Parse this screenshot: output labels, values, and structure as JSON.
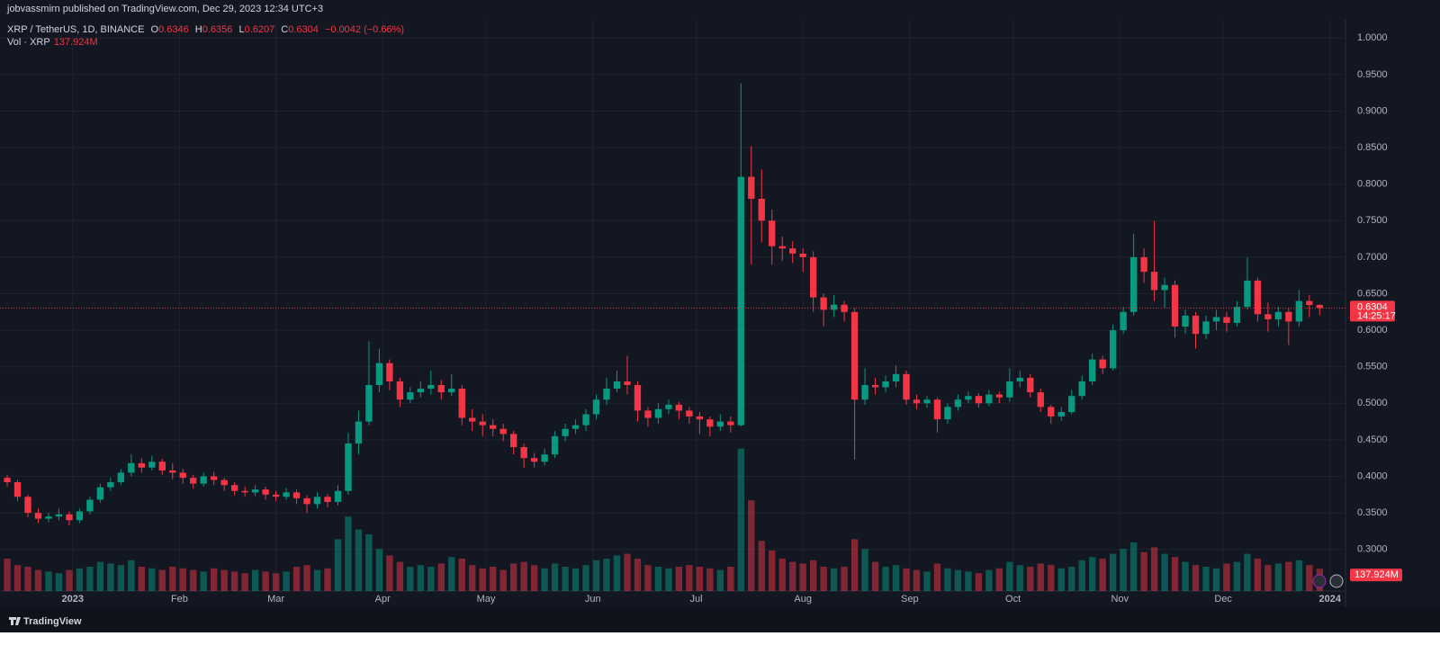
{
  "header": "jobvassmirn published on TradingView.com, Dec 29, 2023 12:34 UTC+3",
  "legend": {
    "symbol": "XRP / TetherUS, 1D, BINANCE",
    "o_key": "O",
    "open": "0.6346",
    "h_key": "H",
    "high": "0.6356",
    "l_key": "L",
    "low": "0.6207",
    "c_key": "C",
    "close": "0.6304",
    "change": "−0.0042 (−0.66%)",
    "volume_name": "Vol · XRP",
    "volume": "137.924M"
  },
  "price_tag": {
    "price": "0.6304",
    "countdown": "14:25:17"
  },
  "volume_tag": "137.924M",
  "footer": "TradingView",
  "chart_data": {
    "type": "candlestick",
    "up_color": "#089981",
    "down_color": "#f23645",
    "grid": true,
    "xlim": [
      -0.7,
      129.5
    ],
    "ylim": [
      0.243,
      1.025
    ],
    "vlim": [
      0,
      1000
    ],
    "xticks": [
      {
        "value": 6.33,
        "label": "2023"
      },
      {
        "value": 16.67,
        "label": "Feb"
      },
      {
        "value": 26,
        "label": "Mar"
      },
      {
        "value": 36.33,
        "label": "Apr"
      },
      {
        "value": 46.33,
        "label": "May"
      },
      {
        "value": 56.67,
        "label": "Jun"
      },
      {
        "value": 66.67,
        "label": "Jul"
      },
      {
        "value": 77,
        "label": "Aug"
      },
      {
        "value": 87.33,
        "label": "Sep"
      },
      {
        "value": 97.33,
        "label": "Oct"
      },
      {
        "value": 107.67,
        "label": "Nov"
      },
      {
        "value": 117.67,
        "label": "Dec"
      },
      {
        "value": 128,
        "label": "2024"
      }
    ],
    "yticks": [
      {
        "value": 0.3,
        "label": "0.3000"
      },
      {
        "value": 0.35,
        "label": "0.3500"
      },
      {
        "value": 0.4,
        "label": "0.4000"
      },
      {
        "value": 0.45,
        "label": "0.4500"
      },
      {
        "value": 0.5,
        "label": "0.5000"
      },
      {
        "value": 0.55,
        "label": "0.5500"
      },
      {
        "value": 0.6,
        "label": "0.6000"
      },
      {
        "value": 0.65,
        "label": "0.6500"
      },
      {
        "value": 0.7,
        "label": "0.7000"
      },
      {
        "value": 0.75,
        "label": "0.7500"
      },
      {
        "value": 0.8,
        "label": "0.8000"
      },
      {
        "value": 0.85,
        "label": "0.8500"
      },
      {
        "value": 0.9,
        "label": "0.9000"
      },
      {
        "value": 0.95,
        "label": "0.9500"
      },
      {
        "value": 1.0,
        "label": "1.0000"
      }
    ],
    "candles": [
      [
        0.398,
        0.402,
        0.386,
        0.392
      ],
      [
        0.392,
        0.395,
        0.366,
        0.372
      ],
      [
        0.372,
        0.375,
        0.344,
        0.35
      ],
      [
        0.35,
        0.356,
        0.336,
        0.342
      ],
      [
        0.342,
        0.35,
        0.337,
        0.345
      ],
      [
        0.345,
        0.356,
        0.34,
        0.348
      ],
      [
        0.348,
        0.352,
        0.333,
        0.34
      ],
      [
        0.34,
        0.356,
        0.336,
        0.352
      ],
      [
        0.352,
        0.372,
        0.348,
        0.368
      ],
      [
        0.368,
        0.39,
        0.364,
        0.385
      ],
      [
        0.385,
        0.398,
        0.38,
        0.392
      ],
      [
        0.392,
        0.41,
        0.388,
        0.405
      ],
      [
        0.405,
        0.43,
        0.4,
        0.418
      ],
      [
        0.418,
        0.425,
        0.405,
        0.412
      ],
      [
        0.412,
        0.428,
        0.408,
        0.42
      ],
      [
        0.42,
        0.424,
        0.402,
        0.408
      ],
      [
        0.408,
        0.418,
        0.396,
        0.405
      ],
      [
        0.405,
        0.41,
        0.39,
        0.398
      ],
      [
        0.398,
        0.402,
        0.383,
        0.39
      ],
      [
        0.39,
        0.405,
        0.386,
        0.4
      ],
      [
        0.4,
        0.406,
        0.388,
        0.395
      ],
      [
        0.395,
        0.398,
        0.38,
        0.388
      ],
      [
        0.388,
        0.392,
        0.374,
        0.38
      ],
      [
        0.38,
        0.386,
        0.372,
        0.378
      ],
      [
        0.378,
        0.388,
        0.373,
        0.382
      ],
      [
        0.382,
        0.386,
        0.368,
        0.375
      ],
      [
        0.375,
        0.38,
        0.366,
        0.372
      ],
      [
        0.372,
        0.384,
        0.368,
        0.378
      ],
      [
        0.378,
        0.382,
        0.362,
        0.37
      ],
      [
        0.37,
        0.374,
        0.35,
        0.362
      ],
      [
        0.362,
        0.378,
        0.356,
        0.372
      ],
      [
        0.372,
        0.376,
        0.358,
        0.365
      ],
      [
        0.365,
        0.388,
        0.36,
        0.38
      ],
      [
        0.38,
        0.46,
        0.375,
        0.445
      ],
      [
        0.445,
        0.49,
        0.43,
        0.475
      ],
      [
        0.475,
        0.585,
        0.47,
        0.525
      ],
      [
        0.525,
        0.575,
        0.515,
        0.555
      ],
      [
        0.555,
        0.56,
        0.518,
        0.53
      ],
      [
        0.53,
        0.535,
        0.495,
        0.505
      ],
      [
        0.505,
        0.522,
        0.5,
        0.515
      ],
      [
        0.515,
        0.53,
        0.508,
        0.52
      ],
      [
        0.52,
        0.545,
        0.512,
        0.525
      ],
      [
        0.525,
        0.532,
        0.505,
        0.515
      ],
      [
        0.515,
        0.54,
        0.51,
        0.52
      ],
      [
        0.52,
        0.525,
        0.47,
        0.48
      ],
      [
        0.48,
        0.492,
        0.462,
        0.475
      ],
      [
        0.475,
        0.485,
        0.455,
        0.47
      ],
      [
        0.47,
        0.478,
        0.455,
        0.465
      ],
      [
        0.465,
        0.472,
        0.448,
        0.458
      ],
      [
        0.458,
        0.462,
        0.43,
        0.44
      ],
      [
        0.44,
        0.445,
        0.412,
        0.425
      ],
      [
        0.425,
        0.432,
        0.412,
        0.42
      ],
      [
        0.42,
        0.438,
        0.415,
        0.43
      ],
      [
        0.43,
        0.462,
        0.425,
        0.455
      ],
      [
        0.455,
        0.472,
        0.448,
        0.465
      ],
      [
        0.465,
        0.478,
        0.458,
        0.47
      ],
      [
        0.47,
        0.492,
        0.462,
        0.485
      ],
      [
        0.485,
        0.512,
        0.478,
        0.505
      ],
      [
        0.505,
        0.535,
        0.498,
        0.52
      ],
      [
        0.52,
        0.545,
        0.515,
        0.53
      ],
      [
        0.53,
        0.565,
        0.512,
        0.525
      ],
      [
        0.525,
        0.53,
        0.475,
        0.49
      ],
      [
        0.49,
        0.495,
        0.468,
        0.48
      ],
      [
        0.48,
        0.5,
        0.472,
        0.492
      ],
      [
        0.492,
        0.505,
        0.485,
        0.498
      ],
      [
        0.498,
        0.502,
        0.478,
        0.49
      ],
      [
        0.49,
        0.495,
        0.472,
        0.482
      ],
      [
        0.482,
        0.488,
        0.458,
        0.478
      ],
      [
        0.478,
        0.482,
        0.455,
        0.468
      ],
      [
        0.468,
        0.485,
        0.462,
        0.475
      ],
      [
        0.475,
        0.482,
        0.46,
        0.47
      ],
      [
        0.47,
        0.938,
        0.468,
        0.81
      ],
      [
        0.81,
        0.852,
        0.69,
        0.78
      ],
      [
        0.78,
        0.82,
        0.72,
        0.75
      ],
      [
        0.75,
        0.765,
        0.69,
        0.715
      ],
      [
        0.715,
        0.728,
        0.695,
        0.712
      ],
      [
        0.712,
        0.722,
        0.692,
        0.705
      ],
      [
        0.705,
        0.712,
        0.68,
        0.7
      ],
      [
        0.7,
        0.708,
        0.625,
        0.645
      ],
      [
        0.645,
        0.65,
        0.605,
        0.628
      ],
      [
        0.628,
        0.648,
        0.618,
        0.635
      ],
      [
        0.635,
        0.64,
        0.612,
        0.625
      ],
      [
        0.625,
        0.63,
        0.423,
        0.505
      ],
      [
        0.505,
        0.548,
        0.498,
        0.525
      ],
      [
        0.525,
        0.535,
        0.512,
        0.522
      ],
      [
        0.522,
        0.538,
        0.515,
        0.53
      ],
      [
        0.53,
        0.552,
        0.522,
        0.54
      ],
      [
        0.54,
        0.545,
        0.498,
        0.505
      ],
      [
        0.505,
        0.512,
        0.492,
        0.5
      ],
      [
        0.5,
        0.51,
        0.494,
        0.505
      ],
      [
        0.505,
        0.508,
        0.46,
        0.478
      ],
      [
        0.478,
        0.5,
        0.472,
        0.495
      ],
      [
        0.495,
        0.512,
        0.49,
        0.505
      ],
      [
        0.505,
        0.516,
        0.5,
        0.51
      ],
      [
        0.51,
        0.514,
        0.494,
        0.5
      ],
      [
        0.5,
        0.518,
        0.496,
        0.512
      ],
      [
        0.512,
        0.516,
        0.5,
        0.508
      ],
      [
        0.508,
        0.548,
        0.502,
        0.53
      ],
      [
        0.53,
        0.545,
        0.522,
        0.535
      ],
      [
        0.535,
        0.54,
        0.508,
        0.515
      ],
      [
        0.515,
        0.52,
        0.488,
        0.495
      ],
      [
        0.495,
        0.498,
        0.472,
        0.482
      ],
      [
        0.482,
        0.495,
        0.476,
        0.488
      ],
      [
        0.488,
        0.518,
        0.485,
        0.51
      ],
      [
        0.51,
        0.538,
        0.505,
        0.53
      ],
      [
        0.53,
        0.568,
        0.525,
        0.56
      ],
      [
        0.56,
        0.565,
        0.54,
        0.548
      ],
      [
        0.548,
        0.608,
        0.545,
        0.6
      ],
      [
        0.6,
        0.632,
        0.595,
        0.625
      ],
      [
        0.625,
        0.732,
        0.62,
        0.7
      ],
      [
        0.7,
        0.712,
        0.665,
        0.68
      ],
      [
        0.68,
        0.75,
        0.64,
        0.655
      ],
      [
        0.655,
        0.672,
        0.63,
        0.662
      ],
      [
        0.662,
        0.668,
        0.59,
        0.605
      ],
      [
        0.605,
        0.628,
        0.595,
        0.62
      ],
      [
        0.62,
        0.625,
        0.575,
        0.595
      ],
      [
        0.595,
        0.62,
        0.588,
        0.612
      ],
      [
        0.612,
        0.628,
        0.6,
        0.618
      ],
      [
        0.618,
        0.625,
        0.598,
        0.61
      ],
      [
        0.61,
        0.64,
        0.605,
        0.632
      ],
      [
        0.632,
        0.7,
        0.628,
        0.668
      ],
      [
        0.668,
        0.672,
        0.612,
        0.622
      ],
      [
        0.622,
        0.638,
        0.598,
        0.615
      ],
      [
        0.615,
        0.632,
        0.605,
        0.625
      ],
      [
        0.625,
        0.63,
        0.58,
        0.612
      ],
      [
        0.612,
        0.655,
        0.605,
        0.64
      ],
      [
        0.64,
        0.648,
        0.618,
        0.6346
      ],
      [
        0.6346,
        0.6356,
        0.6207,
        0.6304
      ]
    ],
    "volume": [
      200,
      160,
      150,
      130,
      120,
      110,
      130,
      140,
      150,
      180,
      170,
      160,
      190,
      150,
      140,
      130,
      150,
      140,
      130,
      120,
      140,
      130,
      120,
      110,
      130,
      120,
      110,
      120,
      150,
      160,
      130,
      140,
      320,
      460,
      380,
      350,
      260,
      220,
      180,
      150,
      160,
      150,
      170,
      210,
      200,
      160,
      140,
      150,
      130,
      170,
      180,
      160,
      140,
      170,
      150,
      140,
      160,
      190,
      200,
      220,
      230,
      200,
      160,
      150,
      140,
      150,
      160,
      150,
      140,
      130,
      150,
      880,
      560,
      310,
      250,
      200,
      180,
      170,
      190,
      150,
      140,
      150,
      320,
      260,
      180,
      150,
      160,
      140,
      130,
      120,
      170,
      140,
      130,
      120,
      110,
      130,
      140,
      180,
      160,
      150,
      170,
      160,
      140,
      150,
      190,
      210,
      200,
      230,
      260,
      300,
      240,
      270,
      230,
      210,
      180,
      160,
      150,
      140,
      170,
      180,
      230,
      200,
      160,
      170,
      180,
      190,
      160,
      137.924
    ]
  }
}
